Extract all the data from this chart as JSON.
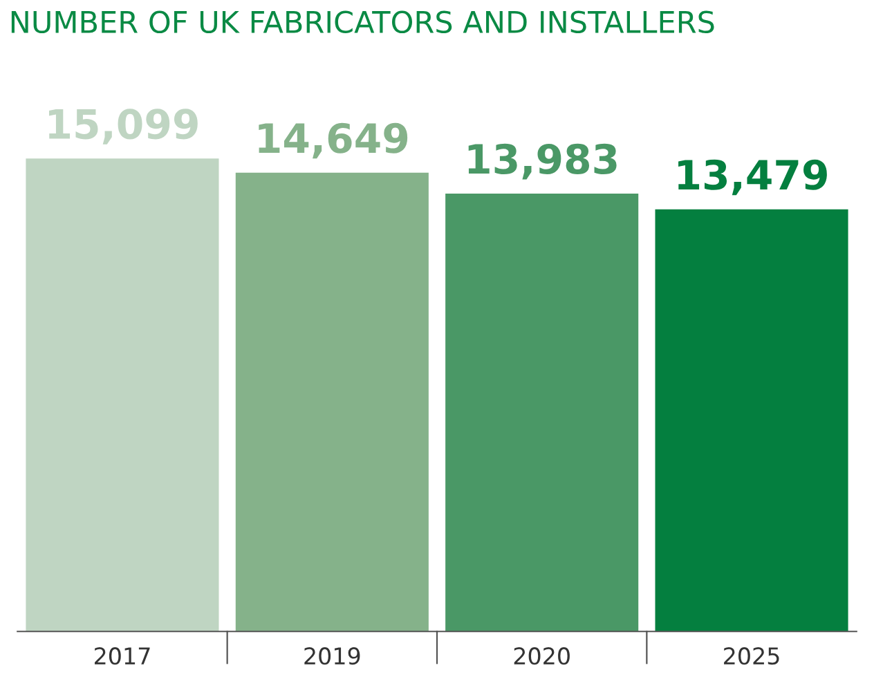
{
  "chart_data": {
    "type": "bar",
    "title": "NUMBER OF UK FABRICATORS AND INSTALLERS",
    "categories": [
      "2017",
      "2019",
      "2020",
      "2025"
    ],
    "values": [
      15099,
      14649,
      13983,
      13479
    ],
    "colors": [
      "#bfd5c2",
      "#85b28a",
      "#4a9866",
      "#047f3f"
    ],
    "value_labels": [
      "15,099",
      "14,649",
      "13,983",
      "13,479"
    ],
    "grid": false,
    "legend": false
  }
}
